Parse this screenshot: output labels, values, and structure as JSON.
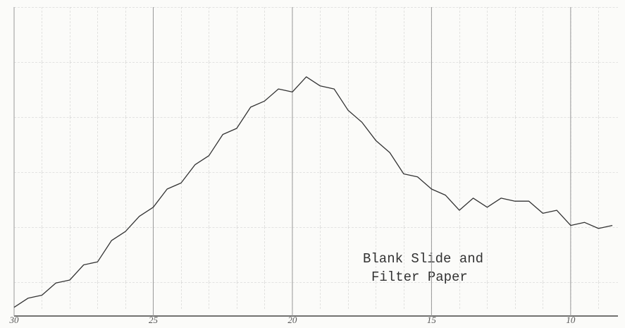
{
  "chart_data": {
    "type": "line",
    "x": [
      30,
      29.5,
      29,
      28.5,
      28,
      27.5,
      27,
      26.5,
      26,
      25.5,
      25,
      24.5,
      24,
      23.5,
      23,
      22.5,
      22,
      21.5,
      21,
      20.5,
      20,
      19.5,
      19,
      18.5,
      18,
      17.5,
      17,
      16.5,
      16,
      15.5,
      15,
      14.5,
      14,
      13.5,
      13,
      12.5,
      12,
      11.5,
      11,
      10.5,
      10,
      9.5,
      9,
      8.5
    ],
    "series": [
      {
        "color": "#333333",
        "values": [
          1,
          4,
          5,
          9,
          10,
          15,
          16,
          23,
          26,
          31,
          34,
          40,
          42,
          48,
          51,
          58,
          60,
          67,
          69,
          73,
          72,
          77,
          74,
          73,
          66,
          62,
          56,
          52,
          45,
          44,
          40,
          38,
          33,
          37,
          34,
          37,
          36,
          36,
          32,
          33,
          28,
          29,
          27,
          28
        ]
      }
    ],
    "xlim": [
      30,
      8.3
    ],
    "ylim": [
      0,
      100
    ],
    "xticks": [
      30,
      25,
      20,
      15,
      10
    ],
    "annotation": [
      "Blank Slide and",
      "Filter Paper"
    ],
    "grid": true
  }
}
